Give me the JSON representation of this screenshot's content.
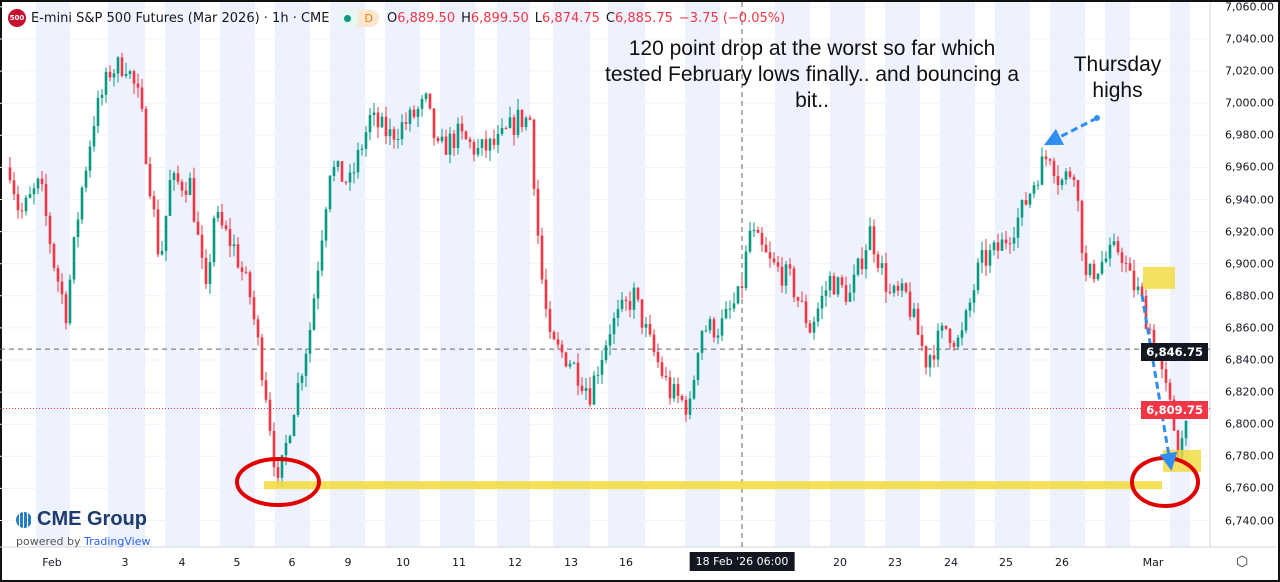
{
  "header": {
    "symbol_badge": "500",
    "title": "E-mini S&P 500 Futures (Mar 2026) · 1h · CME",
    "status_label": "D",
    "open_label": "O",
    "open": "6,889.50",
    "high_label": "H",
    "high": "6,899.50",
    "low_label": "L",
    "low": "6,874.75",
    "close_label": "C",
    "close": "6,885.75",
    "change": "−3.75 (−0.05%)"
  },
  "logo": {
    "brand": "CME Group",
    "powered_prefix": "powered by",
    "powered_brand": "TradingView"
  },
  "annotations": {
    "main_note": "120 point drop at the worst so far which tested February lows finally.. and bouncing a bit..",
    "thursday_note": "Thursday highs"
  },
  "colors": {
    "up": "#089981",
    "down": "#f23645",
    "band": "#eef2fe",
    "highlight": "#f2d93a",
    "circle": "#e00000",
    "arrow": "#2f8ef0"
  },
  "chart_data": {
    "type": "candlestick",
    "title": "E-mini S&P 500 Futures (Mar 2026) · 1h · CME",
    "ylim": [
      6725,
      7065
    ],
    "y_ticks": [
      "7,060.00",
      "7,040.00",
      "7,020.00",
      "7,000.00",
      "6,980.00",
      "6,960.00",
      "6,940.00",
      "6,920.00",
      "6,900.00",
      "6,880.00",
      "6,860.00",
      "6,840.00",
      "6,820.00",
      "6,800.00",
      "6,780.00",
      "6,760.00",
      "6,740.00"
    ],
    "y_tick_values": [
      7060,
      7040,
      7020,
      7000,
      6980,
      6960,
      6940,
      6920,
      6900,
      6880,
      6860,
      6840,
      6820,
      6800,
      6780,
      6760,
      6740
    ],
    "x_labels": [
      "Feb",
      "3",
      "4",
      "5",
      "6",
      "9",
      "10",
      "11",
      "12",
      "13",
      "16",
      "20",
      "23",
      "24",
      "25",
      "26",
      "Mar"
    ],
    "crosshair_label": "18 Feb '26  06:00",
    "price_path_bar_index": [
      0,
      2.5,
      7.5,
      11,
      14,
      17.5,
      21,
      25,
      29,
      32.5,
      35,
      37.5,
      40,
      45,
      49,
      51,
      56,
      60,
      64,
      67,
      70,
      75,
      80,
      85,
      90,
      95,
      100,
      104,
      107,
      112,
      117,
      122,
      127,
      130,
      132.5,
      135,
      140,
      145,
      150,
      156,
      160,
      165,
      170,
      172.5,
      177.5,
      182.5,
      185,
      190,
      195,
      200,
      205,
      210,
      215,
      220,
      224,
      229,
      234,
      237.5,
      242.5,
      247.5,
      252.5,
      257.5,
      260,
      262.5,
      266,
      269,
      272.5,
      277.5,
      280,
      282.5,
      286,
      290,
      292.5,
      294
    ],
    "price_path_close": [
      6960,
      6930,
      6950,
      6900,
      6870,
      6940,
      6990,
      7020,
      7025,
      7000,
      6950,
      6900,
      6950,
      6950,
      6880,
      6930,
      6910,
      6880,
      6820,
      6760,
      6800,
      6860,
      6960,
      6950,
      6990,
      6980,
      6990,
      7000,
      6970,
      6980,
      6970,
      6975,
      6990,
      6990,
      6900,
      6850,
      6840,
      6820,
      6860,
      6880,
      6850,
      6820,
      6810,
      6860,
      6860,
      6880,
      6920,
      6900,
      6890,
      6860,
      6890,
      6880,
      6920,
      6880,
      6880,
      6840,
      6860,
      6850,
      6900,
      6910,
      6930,
      6960,
      6970,
      6950,
      6960,
      6890,
      6900,
      6910,
      6890,
      6880,
      6850,
      6810,
      6780,
      6810
    ],
    "last_price": {
      "value": 6809.75,
      "label": "6,809.75"
    },
    "crosshair_price": {
      "value": 6846.75,
      "label": "6,846.75"
    },
    "support_level": 6762
  }
}
